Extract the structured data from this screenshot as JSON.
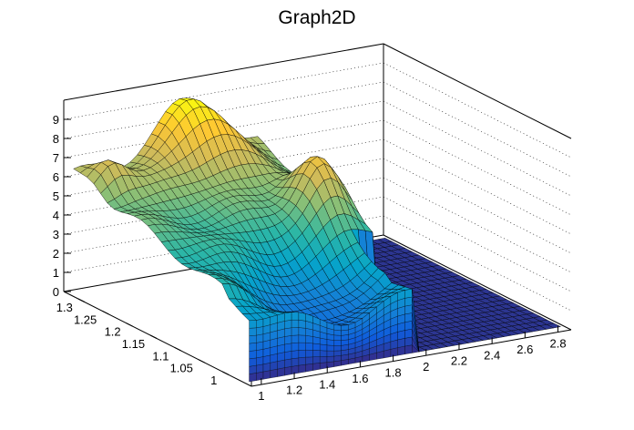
{
  "chart_data": {
    "type": "surface3d",
    "title": "Graph2D",
    "xlabel": "",
    "ylabel": "",
    "zlabel": "",
    "x_range": [
      0.94,
      2.88
    ],
    "y_range": [
      0.94,
      1.33
    ],
    "z_range": [
      0,
      10
    ],
    "x_ticks": [
      "1",
      "1.2",
      "1.4",
      "1.6",
      "1.8",
      "2",
      "2.2",
      "2.4",
      "2.6",
      "2.8"
    ],
    "y_ticks": [
      "1",
      "1.05",
      "1.1",
      "1.15",
      "1.2",
      "1.25",
      "1.3"
    ],
    "z_ticks": [
      "0",
      "1",
      "2",
      "3",
      "4",
      "5",
      "6",
      "7",
      "8",
      "9"
    ],
    "grid": true,
    "palette": [
      "#352a87",
      "#0f5cdd",
      "#1481d6",
      "#06a4ca",
      "#2eb7a4",
      "#87bf77",
      "#d1bb59",
      "#fec832",
      "#f9fb0e"
    ],
    "surface_features": [
      {
        "x": 1.1,
        "y": 1.29,
        "z": 6.2,
        "note": "left back ridge"
      },
      {
        "x": 1.65,
        "y": 1.3,
        "z": 8.8,
        "note": "back peak"
      },
      {
        "x": 1.95,
        "y": 1.15,
        "z": 7.0,
        "note": "front peak"
      },
      {
        "x": 2.05,
        "y": 1.0,
        "z": 0.0,
        "note": "gap to floor"
      },
      {
        "x": 2.6,
        "y": 1.1,
        "z": 0.0,
        "note": "flat floor"
      }
    ]
  }
}
